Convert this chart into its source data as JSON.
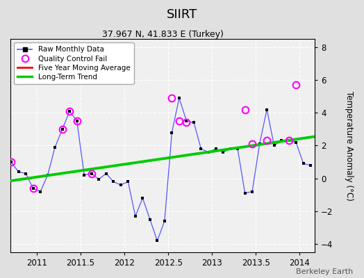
{
  "title": "SIIRT",
  "subtitle": "37.967 N, 41.833 E (Turkey)",
  "ylabel": "Temperature Anomaly (°C)",
  "watermark": "Berkeley Earth",
  "xlim": [
    2010.7,
    2014.17
  ],
  "ylim": [
    -4.5,
    8.5
  ],
  "yticks": [
    -4,
    -2,
    0,
    2,
    4,
    6,
    8
  ],
  "xticks": [
    2011,
    2011.5,
    2012,
    2012.5,
    2013,
    2013.5,
    2014
  ],
  "bg_color": "#e0e0e0",
  "plot_bg_color": "#f0f0f0",
  "raw_line_color": "#5555ff",
  "raw_marker_color": "#000000",
  "qc_color": "#ff00ff",
  "moving_avg_color": "#ff0000",
  "trend_color": "#00cc00",
  "raw_x": [
    2010.708,
    2010.792,
    2010.875,
    2010.958,
    2011.042,
    2011.125,
    2011.208,
    2011.292,
    2011.375,
    2011.458,
    2011.542,
    2011.625,
    2011.708,
    2011.792,
    2011.875,
    2011.958,
    2012.042,
    2012.125,
    2012.208,
    2012.292,
    2012.375,
    2012.458,
    2012.542,
    2012.625,
    2012.708,
    2012.792,
    2012.875,
    2012.958,
    2013.042,
    2013.125,
    2013.208,
    2013.292,
    2013.375,
    2013.458,
    2013.542,
    2013.625,
    2013.708,
    2013.792,
    2013.875,
    2013.958,
    2014.042,
    2014.125
  ],
  "raw_y": [
    1.0,
    0.4,
    0.3,
    -0.6,
    -0.8,
    0.2,
    1.9,
    3.0,
    4.1,
    3.5,
    0.2,
    0.3,
    -0.05,
    0.3,
    -0.2,
    -0.4,
    -0.2,
    -2.3,
    -1.2,
    -2.5,
    -3.8,
    -2.6,
    2.8,
    4.9,
    3.5,
    3.4,
    1.8,
    1.6,
    1.8,
    1.6,
    1.8,
    1.8,
    -0.9,
    -0.8,
    2.1,
    4.2,
    2.0,
    2.3,
    2.3,
    2.2,
    0.9,
    0.8
  ],
  "qc_x": [
    2010.708,
    2010.958,
    2011.292,
    2011.375,
    2011.458,
    2011.625,
    2012.542,
    2012.625,
    2012.708,
    2013.375,
    2013.458,
    2013.625,
    2013.875,
    2013.958
  ],
  "qc_y": [
    1.0,
    -0.6,
    3.0,
    4.1,
    3.5,
    0.3,
    4.9,
    3.5,
    3.4,
    4.2,
    2.1,
    2.3,
    2.3,
    5.7
  ],
  "trend_x": [
    2010.7,
    2014.17
  ],
  "trend_y": [
    -0.15,
    2.55
  ],
  "legend_loc": "upper left"
}
